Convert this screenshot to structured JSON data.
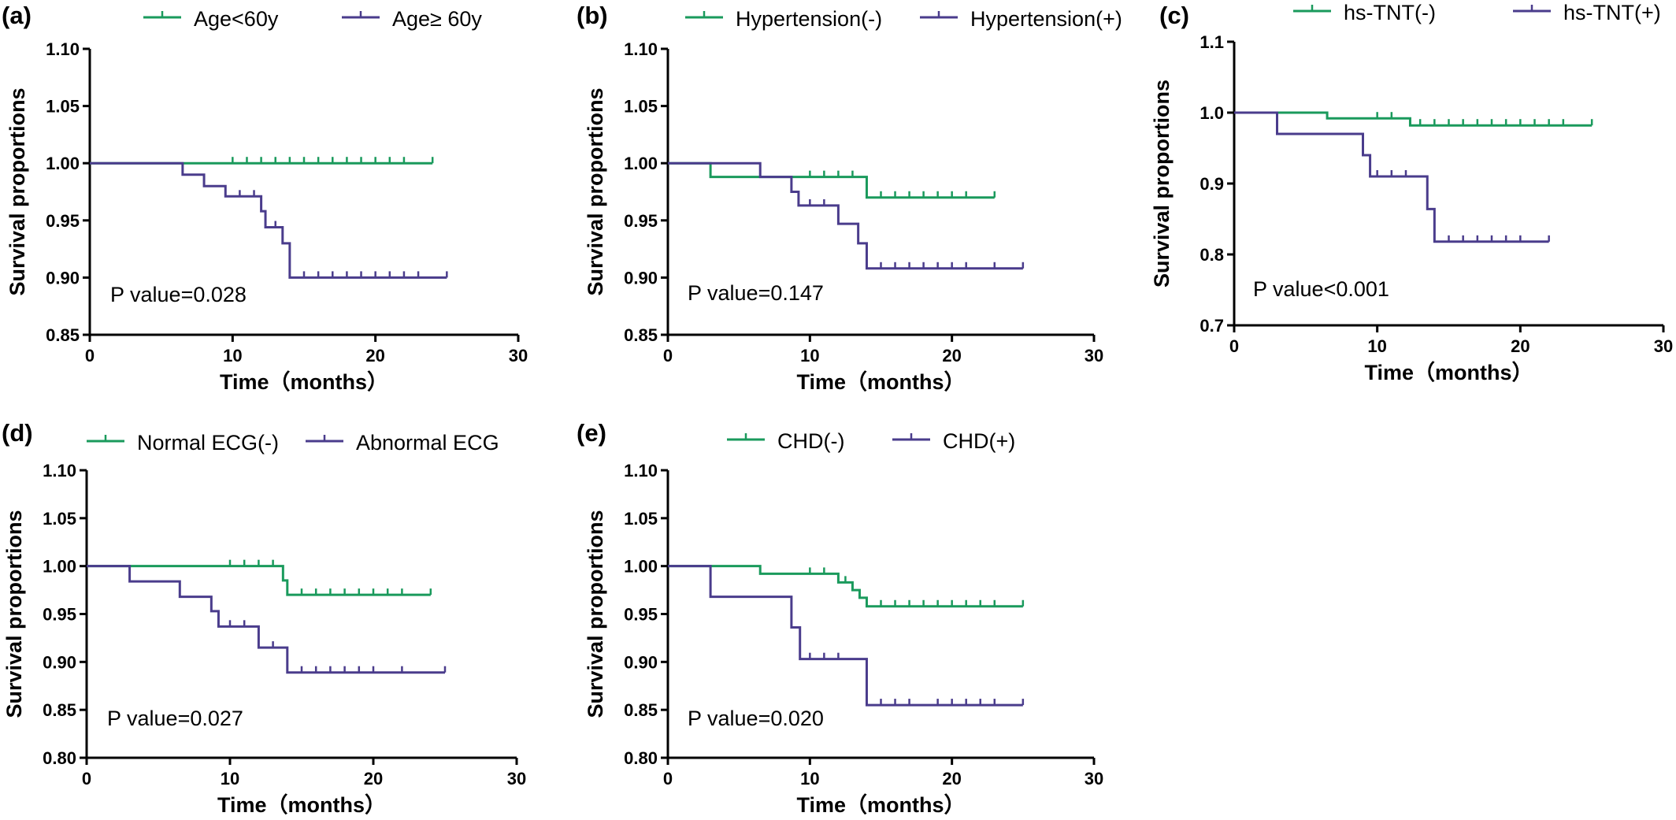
{
  "colors": {
    "green": "#1a9a5c",
    "purple": "#4a3c8c"
  },
  "chart_data": [
    {
      "panel": "(a)",
      "type": "line",
      "xlabel": "Time（months）",
      "ylabel": "Survival proportions",
      "xlim": [
        0,
        30
      ],
      "ylim": [
        0.85,
        1.1
      ],
      "xticks": [
        0,
        10,
        20,
        30
      ],
      "yticks": [
        0.85,
        0.9,
        0.95,
        1.0,
        1.05,
        1.1
      ],
      "ytick_labels": [
        "0.85",
        "0.90",
        "0.95",
        "1.00",
        "1.05",
        "1.10"
      ],
      "annotation": "P value=0.028",
      "series": [
        {
          "name": "Age<60y",
          "color": "green",
          "steps": [
            [
              0,
              1.0
            ],
            [
              24,
              1.0
            ]
          ],
          "censors": [
            10,
            11,
            12,
            13,
            14,
            15,
            16,
            17,
            18,
            19,
            20,
            21,
            22,
            24
          ]
        },
        {
          "name": "Age≥ 60y",
          "color": "purple",
          "steps": [
            [
              0,
              1.0
            ],
            [
              6.5,
              0.99
            ],
            [
              8,
              0.98
            ],
            [
              9.5,
              0.971
            ],
            [
              12,
              0.958
            ],
            [
              12.3,
              0.944
            ],
            [
              13.5,
              0.93
            ],
            [
              14,
              0.9
            ],
            [
              25,
              0.9
            ]
          ],
          "censors": [
            10.5,
            11.5,
            13,
            15,
            16,
            17,
            18,
            19,
            20,
            21,
            22,
            23,
            25
          ]
        }
      ]
    },
    {
      "panel": "(b)",
      "type": "line",
      "xlabel": "Time（months）",
      "ylabel": "Survival proportions",
      "xlim": [
        0,
        30
      ],
      "ylim": [
        0.85,
        1.1
      ],
      "xticks": [
        0,
        10,
        20,
        30
      ],
      "yticks": [
        0.85,
        0.9,
        0.95,
        1.0,
        1.05,
        1.1
      ],
      "ytick_labels": [
        "0.85",
        "0.90",
        "0.95",
        "1.00",
        "1.05",
        "1.10"
      ],
      "annotation": "P value=0.147",
      "series": [
        {
          "name": "Hypertension(-)",
          "color": "green",
          "steps": [
            [
              0,
              1.0
            ],
            [
              3,
              0.988
            ],
            [
              14,
              0.97
            ],
            [
              23,
              0.97
            ]
          ],
          "censors": [
            10,
            11,
            12,
            13,
            15,
            16,
            17,
            18,
            19,
            20,
            21,
            23
          ]
        },
        {
          "name": "Hypertension(+)",
          "color": "purple",
          "steps": [
            [
              0,
              1.0
            ],
            [
              6.5,
              0.988
            ],
            [
              8.7,
              0.975
            ],
            [
              9.2,
              0.963
            ],
            [
              12,
              0.947
            ],
            [
              13.4,
              0.93
            ],
            [
              14,
              0.908
            ],
            [
              25,
              0.908
            ]
          ],
          "censors": [
            10,
            11,
            15,
            16,
            17,
            18,
            19,
            20,
            21,
            23,
            25
          ]
        }
      ]
    },
    {
      "panel": "(c)",
      "type": "line",
      "xlabel": "Time（months）",
      "ylabel": "Survival proportions",
      "xlim": [
        0,
        30
      ],
      "ylim": [
        0.7,
        1.1
      ],
      "xticks": [
        0,
        10,
        20,
        30
      ],
      "yticks": [
        0.7,
        0.8,
        0.9,
        1.0,
        1.1
      ],
      "ytick_labels": [
        "0.7",
        "0.8",
        "0.9",
        "1.0",
        "1.1"
      ],
      "annotation": "P value<0.001",
      "series": [
        {
          "name": "hs-TNT(-)",
          "color": "green",
          "steps": [
            [
              0,
              1.0
            ],
            [
              6.5,
              0.992
            ],
            [
              12.3,
              0.982
            ],
            [
              25,
              0.982
            ]
          ],
          "censors": [
            10,
            11,
            13,
            14,
            15,
            16,
            17,
            18,
            19,
            20,
            21,
            22,
            23,
            25
          ]
        },
        {
          "name": "hs-TNT(+)",
          "color": "purple",
          "steps": [
            [
              0,
              1.0
            ],
            [
              3,
              0.97
            ],
            [
              9,
              0.94
            ],
            [
              9.5,
              0.91
            ],
            [
              13.5,
              0.864
            ],
            [
              14,
              0.818
            ],
            [
              22,
              0.818
            ]
          ],
          "censors": [
            10,
            11,
            12,
            15,
            16,
            17,
            18,
            19,
            20,
            22
          ]
        }
      ]
    },
    {
      "panel": "(d)",
      "type": "line",
      "xlabel": "Time（months）",
      "ylabel": "Survival proportions",
      "xlim": [
        0,
        30
      ],
      "ylim": [
        0.8,
        1.1
      ],
      "xticks": [
        0,
        10,
        20,
        30
      ],
      "yticks": [
        0.8,
        0.85,
        0.9,
        0.95,
        1.0,
        1.05,
        1.1
      ],
      "ytick_labels": [
        "0.80",
        "0.85",
        "0.90",
        "0.95",
        "1.00",
        "1.05",
        "1.10"
      ],
      "annotation": "P value=0.027",
      "series": [
        {
          "name": "Normal ECG(-)",
          "color": "green",
          "steps": [
            [
              0,
              1.0
            ],
            [
              13.7,
              0.985
            ],
            [
              14,
              0.97
            ],
            [
              24,
              0.97
            ]
          ],
          "censors": [
            10,
            11,
            12,
            13,
            15,
            16,
            17,
            18,
            19,
            20,
            21,
            22,
            24
          ]
        },
        {
          "name": "Abnormal ECG",
          "color": "purple",
          "steps": [
            [
              0,
              1.0
            ],
            [
              3,
              0.984
            ],
            [
              6.5,
              0.968
            ],
            [
              8.7,
              0.953
            ],
            [
              9.2,
              0.937
            ],
            [
              12,
              0.915
            ],
            [
              14,
              0.889
            ],
            [
              25,
              0.889
            ]
          ],
          "censors": [
            10,
            11,
            13,
            15,
            16,
            17,
            18,
            19,
            20,
            22,
            25
          ]
        }
      ]
    },
    {
      "panel": "(e)",
      "type": "line",
      "xlabel": "Time（months）",
      "ylabel": "Survival proportions",
      "xlim": [
        0,
        30
      ],
      "ylim": [
        0.8,
        1.1
      ],
      "xticks": [
        0,
        10,
        20,
        30
      ],
      "yticks": [
        0.8,
        0.85,
        0.9,
        0.95,
        1.0,
        1.05,
        1.1
      ],
      "ytick_labels": [
        "0.80",
        "0.85",
        "0.90",
        "0.95",
        "1.00",
        "1.05",
        "1.10"
      ],
      "annotation": "P value=0.020",
      "series": [
        {
          "name": "CHD(-)",
          "color": "green",
          "steps": [
            [
              0,
              1.0
            ],
            [
              6.5,
              0.992
            ],
            [
              12,
              0.983
            ],
            [
              13,
              0.975
            ],
            [
              13.5,
              0.967
            ],
            [
              14,
              0.958
            ],
            [
              25,
              0.958
            ]
          ],
          "censors": [
            10,
            11,
            12.5,
            15,
            16,
            17,
            18,
            19,
            20,
            21,
            22,
            23,
            25
          ]
        },
        {
          "name": "CHD(+)",
          "color": "purple",
          "steps": [
            [
              0,
              1.0
            ],
            [
              3,
              0.968
            ],
            [
              8.7,
              0.936
            ],
            [
              9.3,
              0.903
            ],
            [
              14,
              0.855
            ],
            [
              25,
              0.855
            ]
          ],
          "censors": [
            10,
            11,
            12,
            15,
            16,
            17,
            19,
            20,
            21,
            22,
            23,
            25
          ]
        }
      ]
    }
  ]
}
